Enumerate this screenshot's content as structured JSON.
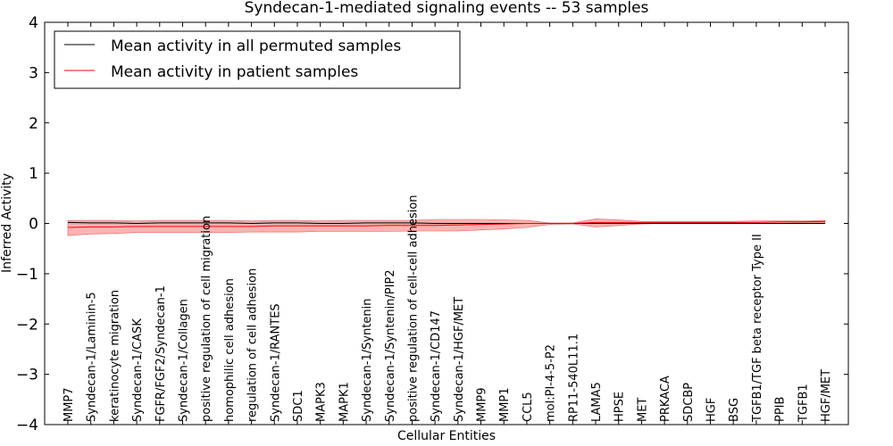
{
  "chart_data": {
    "type": "line",
    "title": "Syndecan-1-mediated signaling events -- 53 samples",
    "xlabel": "Cellular Entities",
    "ylabel": "Inferred Activity",
    "ylim": [
      -4,
      4
    ],
    "yticks": [
      "4",
      "3",
      "2",
      "1",
      "0",
      "−1",
      "−2",
      "−3",
      "−4"
    ],
    "legend_position": "top-left",
    "categories": [
      "MMP7",
      "Syndecan-1/Laminin-5",
      "keratinocyte migration",
      "Syndecan-1/CASK",
      "FGFR/FGF2/Syndecan-1",
      "Syndecan-1/Collagen",
      "positive regulation of cell migration",
      "homophilic cell adhesion",
      "regulation of cell adhesion",
      "Syndecan-1/RANTES",
      "SDC1",
      "MAPK3",
      "MAPK1",
      "Syndecan-1/Syntenin",
      "Syndecan-1/Syntenin/PIP2",
      "positive regulation of cell-cell adhesion",
      "Syndecan-1/CD147",
      "Syndecan-1/HGF/MET",
      "MMP9",
      "MMP1",
      "CCL5",
      "mol:PI-4-5-P2",
      "RP11-540L11.1",
      "LAMA5",
      "HPSE",
      "MET",
      "PRKACA",
      "SDCBP",
      "HGF",
      "BSG",
      "TGFB1/TGF beta receptor Type II",
      "PPIB",
      "TGFB1",
      "HGF/MET"
    ],
    "series": [
      {
        "name": "Mean activity in all permuted samples",
        "color": "#000000",
        "values": [
          0.02,
          0.01,
          0.01,
          0.0,
          0.01,
          0.01,
          0.01,
          0.01,
          0.0,
          0.01,
          0.01,
          0.0,
          0.0,
          0.01,
          0.01,
          0.01,
          0.0,
          0.0,
          0.0,
          0.0,
          0.0,
          0.0,
          0.0,
          0.0,
          0.0,
          0.0,
          0.0,
          0.0,
          0.0,
          0.0,
          0.0,
          0.0,
          0.0,
          0.0
        ],
        "band_upper": [
          0.05,
          0.05,
          0.05,
          0.04,
          0.05,
          0.05,
          0.05,
          0.05,
          0.04,
          0.05,
          0.05,
          0.04,
          0.04,
          0.05,
          0.05,
          0.05,
          0.04,
          0.04,
          0.03,
          0.03,
          0.02,
          0.01,
          0.01,
          0.01,
          0.01,
          0.01,
          0.01,
          0.01,
          0.01,
          0.01,
          0.01,
          0.01,
          0.02,
          0.02
        ],
        "band_lower": [
          -0.03,
          -0.03,
          -0.03,
          -0.03,
          -0.03,
          -0.03,
          -0.03,
          -0.03,
          -0.03,
          -0.03,
          -0.03,
          -0.03,
          -0.03,
          -0.03,
          -0.03,
          -0.03,
          -0.03,
          -0.03,
          -0.02,
          -0.02,
          -0.01,
          -0.01,
          -0.01,
          -0.01,
          -0.01,
          -0.01,
          -0.01,
          -0.01,
          -0.01,
          -0.01,
          -0.01,
          -0.01,
          -0.01,
          -0.01
        ]
      },
      {
        "name": "Mean activity in patient samples",
        "color": "#ff0000",
        "band_color": "#ff8080",
        "values": [
          -0.08,
          -0.07,
          -0.07,
          -0.06,
          -0.06,
          -0.06,
          -0.06,
          -0.06,
          -0.06,
          -0.05,
          -0.05,
          -0.05,
          -0.05,
          -0.05,
          -0.04,
          -0.04,
          -0.04,
          -0.03,
          -0.02,
          -0.01,
          0.0,
          0.0,
          0.0,
          0.02,
          0.02,
          0.02,
          0.02,
          0.02,
          0.02,
          0.02,
          0.02,
          0.03,
          0.03,
          0.04
        ],
        "band_upper": [
          0.06,
          0.06,
          0.06,
          0.05,
          0.06,
          0.06,
          0.06,
          0.06,
          0.05,
          0.06,
          0.06,
          0.05,
          0.06,
          0.06,
          0.06,
          0.06,
          0.08,
          0.08,
          0.08,
          0.07,
          0.06,
          0.01,
          0.01,
          0.09,
          0.07,
          0.04,
          0.04,
          0.04,
          0.04,
          0.04,
          0.05,
          0.05,
          0.05,
          0.06
        ],
        "band_lower": [
          -0.24,
          -0.21,
          -0.2,
          -0.18,
          -0.18,
          -0.18,
          -0.18,
          -0.18,
          -0.17,
          -0.17,
          -0.17,
          -0.16,
          -0.16,
          -0.16,
          -0.16,
          -0.15,
          -0.15,
          -0.15,
          -0.13,
          -0.11,
          -0.08,
          -0.02,
          -0.01,
          -0.07,
          -0.04,
          -0.01,
          0.0,
          0.0,
          0.0,
          0.0,
          0.0,
          0.0,
          0.01,
          0.01
        ]
      }
    ]
  }
}
